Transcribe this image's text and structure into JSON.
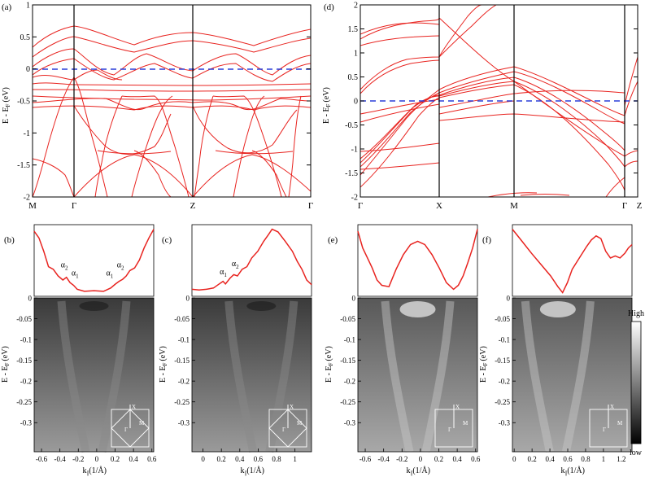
{
  "colors": {
    "band": "#e8231f",
    "fermi": "#2a3fd8",
    "curve": "#e8231f",
    "frame": "#000000"
  },
  "top_left": {
    "label": "(a)",
    "ylabel_main": "E - E",
    "ylabel_sub": "F",
    "ylabel_unit": "(eV)",
    "yticks": [
      "1",
      "0.5",
      "0",
      "-0.5",
      "-1",
      "-1.5",
      "-2"
    ],
    "ytick_values": [
      1,
      0.5,
      0,
      -0.5,
      -1,
      -1.5,
      -2
    ],
    "kpoints": [
      "M",
      "Γ",
      "Z",
      "Γ"
    ],
    "chart_data": {
      "type": "line",
      "title": "",
      "xlabel": "",
      "ylabel": "E - E_F (eV)",
      "ylim": [
        -2,
        1
      ],
      "x_ticks": [
        "M",
        "Γ",
        "Z",
        "Γ"
      ],
      "fermi_level": 0,
      "series": [
        {
          "name": "band-1",
          "values": [
            0.42,
            0.62,
            0.2,
            0.48,
            0.42,
            0.55
          ]
        },
        {
          "name": "band-2",
          "values": [
            0.2,
            0.52,
            -0.05,
            0.38,
            0.1,
            0.4
          ]
        },
        {
          "name": "band-3",
          "values": [
            -0.28,
            0.02,
            -0.35,
            -0.05,
            -0.3,
            -0.02
          ]
        },
        {
          "name": "band-4",
          "values": [
            -1.85,
            -0.3,
            -1.35,
            -0.3,
            -1.35,
            -0.35
          ]
        },
        {
          "name": "band-5",
          "values": [
            -2.0,
            -1.35,
            -0.35,
            -1.35,
            -0.35,
            -1.3
          ]
        }
      ]
    }
  },
  "top_right": {
    "label": "(d)",
    "ylabel_main": "E - E",
    "ylabel_sub": "F",
    "ylabel_unit": "(eV)",
    "yticks": [
      "2",
      "1.5",
      "1",
      "0.5",
      "0",
      "-0.5",
      "-1",
      "-1.5",
      "-2"
    ],
    "ytick_values": [
      2,
      1.5,
      1,
      0.5,
      0,
      -0.5,
      -1,
      -1.5,
      -2
    ],
    "kpoints": [
      "Γ",
      "X",
      "M",
      "Γ",
      "Z"
    ],
    "chart_data": {
      "type": "line",
      "title": "",
      "xlabel": "",
      "ylabel": "E - E_F (eV)",
      "ylim": [
        -2,
        2
      ],
      "x_ticks": [
        "Γ",
        "X",
        "M",
        "Γ",
        "Z"
      ],
      "fermi_level": 0,
      "series": [
        {
          "name": "band-1",
          "values": [
            1.25,
            1.45,
            0.7,
            -0.35,
            0.15
          ]
        },
        {
          "name": "band-2",
          "values": [
            0.9,
            0.85,
            0.6,
            -0.3,
            0.2
          ]
        },
        {
          "name": "band-3",
          "values": [
            -0.5,
            0.05,
            0.55,
            -0.9,
            -1.2
          ]
        },
        {
          "name": "band-4",
          "values": [
            -1.35,
            -0.1,
            0.5,
            -1.5,
            -1.3
          ]
        }
      ]
    }
  },
  "arpes": [
    {
      "label": "(b)",
      "xticks": [
        "-0.6",
        "-0.4",
        "-0.2",
        "0",
        "0.2",
        "0.4",
        "0.6"
      ],
      "xtick_values": [
        -0.6,
        -0.4,
        -0.2,
        0,
        0.2,
        0.4,
        0.6
      ],
      "xlim": [
        -0.68,
        0.62
      ],
      "peak_labels": [
        {
          "main": "α",
          "sub": "2"
        },
        {
          "main": "α",
          "sub": "1"
        },
        {
          "main": "α",
          "sub": "1"
        },
        {
          "main": "α",
          "sub": "2"
        }
      ],
      "inset": {
        "gamma": "Γ",
        "x": "X",
        "m": "M"
      }
    },
    {
      "label": "(c)",
      "xticks": [
        "0",
        "0.2",
        "0.4",
        "0.6",
        "0.8",
        "1"
      ],
      "xtick_values": [
        0,
        0.2,
        0.4,
        0.6,
        0.8,
        1.0
      ],
      "xlim": [
        -0.12,
        1.18
      ],
      "peak_labels": [
        {
          "main": "α",
          "sub": "1"
        },
        {
          "main": "α",
          "sub": "2"
        }
      ],
      "inset": {
        "gamma": "Γ",
        "x": "X",
        "m": "M"
      }
    },
    {
      "label": "(e)",
      "xticks": [
        "-0.6",
        "-0.4",
        "-0.2",
        "0",
        "0.2",
        "0.4",
        "0.6"
      ],
      "xtick_values": [
        -0.6,
        -0.4,
        -0.2,
        0,
        0.2,
        0.4,
        0.6
      ],
      "xlim": [
        -0.68,
        0.62
      ],
      "peak_labels": [],
      "inset": {
        "gamma": "Γ",
        "x": "X",
        "m": "M"
      }
    },
    {
      "label": "(f)",
      "xticks": [
        "0",
        "0.2",
        "0.4",
        "0.6",
        "0.8",
        "1",
        "1.2"
      ],
      "xtick_values": [
        0,
        0.2,
        0.4,
        0.6,
        0.8,
        1.0,
        1.2
      ],
      "xlim": [
        -0.02,
        1.32
      ],
      "peak_labels": [],
      "inset": {
        "gamma": "Γ",
        "x": "X",
        "m": "M"
      }
    }
  ],
  "arpes_axes": {
    "ylabel_main": "E - E",
    "ylabel_sub": "F",
    "ylabel_unit": "(eV)",
    "yticks": [
      "0",
      "-0.05",
      "-0.1",
      "-0.15",
      "-0.2",
      "-0.25",
      "-0.3"
    ],
    "ytick_values": [
      0,
      -0.05,
      -0.1,
      -0.15,
      -0.2,
      -0.25,
      -0.3
    ],
    "ylim": [
      -0.37,
      0.0
    ],
    "xlabel_main": "k",
    "xlabel_sub": "||",
    "xlabel_unit": "(1/Å)"
  },
  "colorbar": {
    "high": "High",
    "low": "low"
  }
}
